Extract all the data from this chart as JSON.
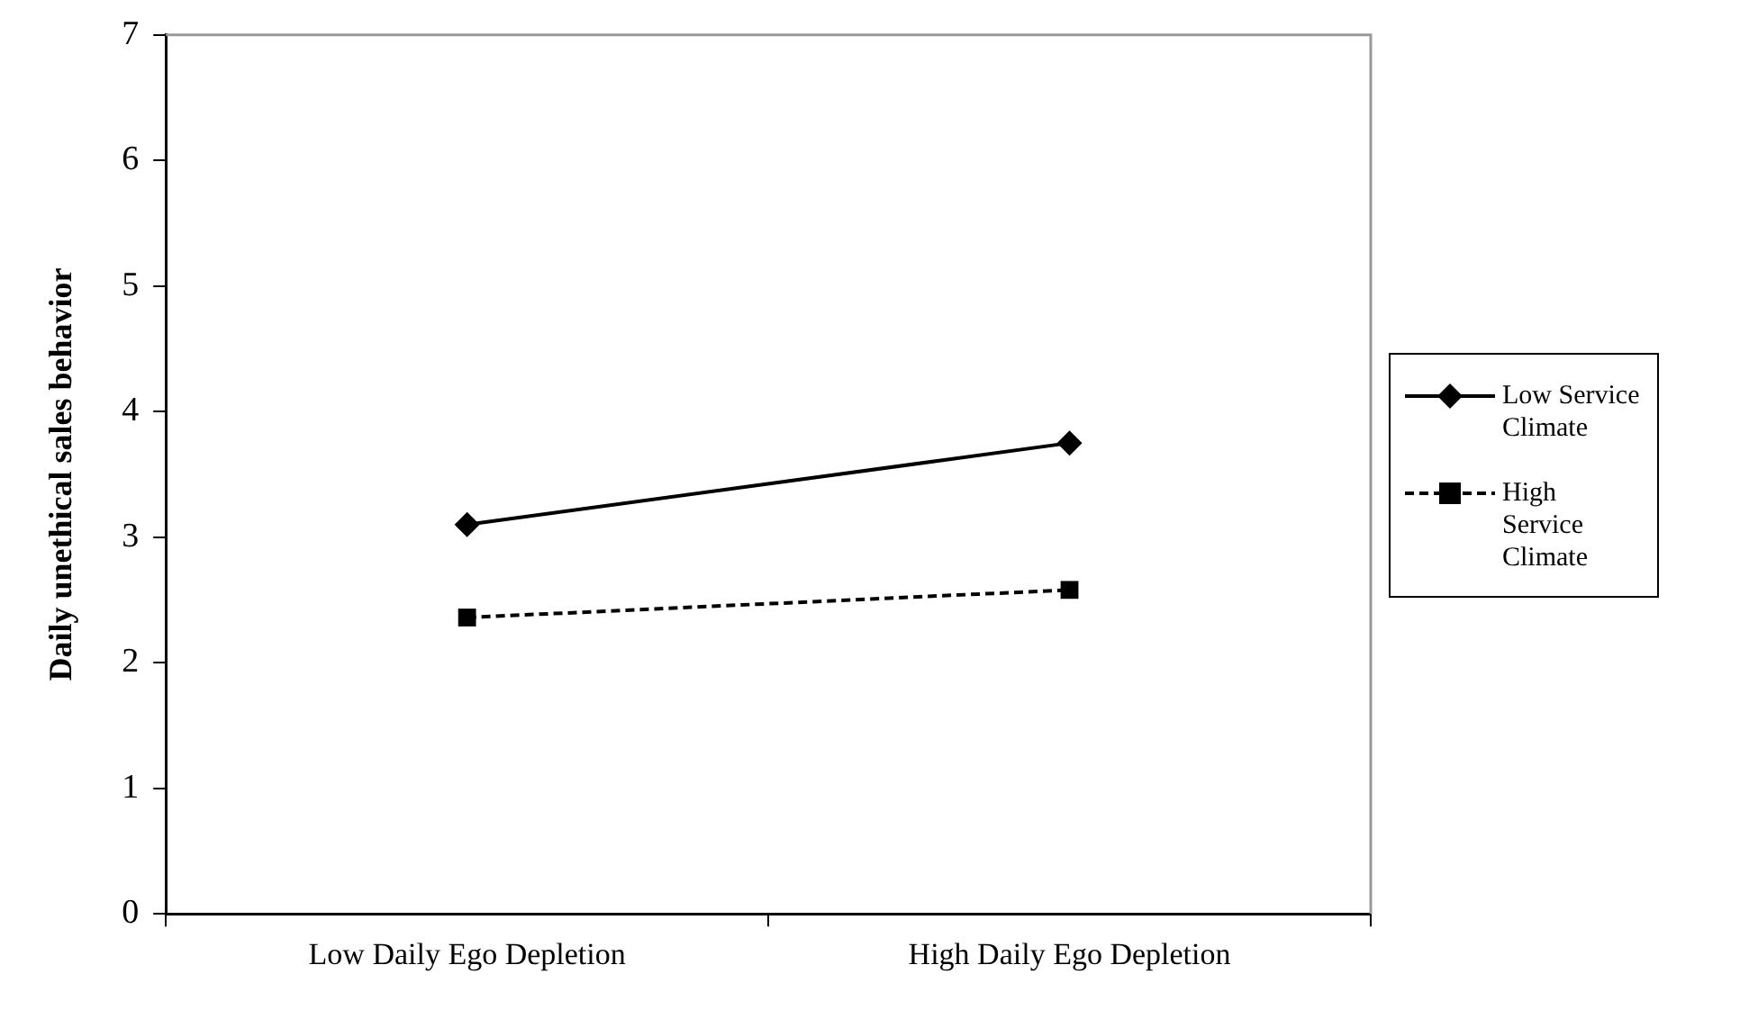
{
  "chart_data": {
    "type": "line",
    "ylabel": "Daily unethical sales behavior",
    "categories": [
      "Low Daily Ego Depletion",
      "High Daily Ego Depletion"
    ],
    "series": [
      {
        "name": "Low Service Climate",
        "color": "#000000",
        "values": [
          3.1,
          3.75
        ],
        "marker": "diamond",
        "line_style": "solid"
      },
      {
        "name": "High Service Climate",
        "color": "#000000",
        "values": [
          2.36,
          2.58
        ],
        "marker": "square",
        "line_style": "dashed"
      }
    ],
    "ylim": [
      0,
      7
    ],
    "yticks": [
      0,
      1,
      2,
      3,
      4,
      5,
      6,
      7
    ],
    "grid": false,
    "legend": "right"
  }
}
